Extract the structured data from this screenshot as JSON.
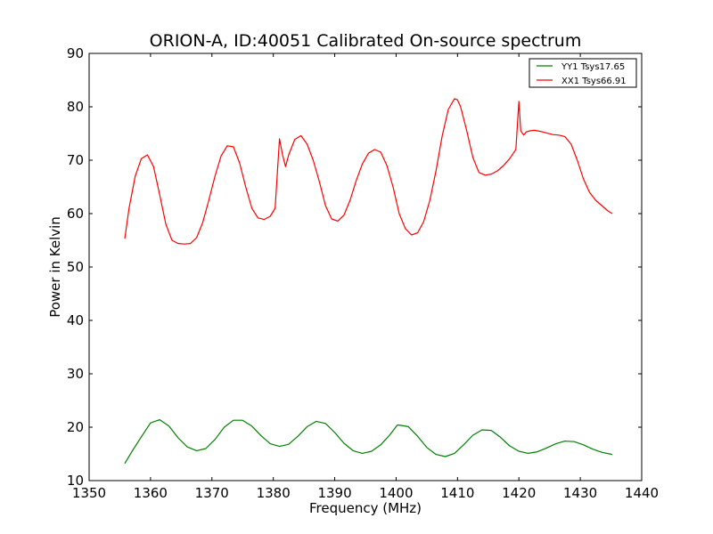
{
  "chart_data": {
    "type": "line",
    "title": "ORION-A, ID:40051 Calibrated On-source spectrum",
    "xlabel": "Frequency (MHz)",
    "ylabel": "Power in Kelvin",
    "xlim": [
      1350,
      1440
    ],
    "ylim": [
      10,
      90
    ],
    "xticks": [
      "1350",
      "1360",
      "1370",
      "1380",
      "1390",
      "1400",
      "1410",
      "1420",
      "1430",
      "1440"
    ],
    "yticks": [
      "10",
      "20",
      "30",
      "40",
      "50",
      "60",
      "70",
      "80",
      "90"
    ],
    "grid": false,
    "legend_position": "top-right",
    "series": [
      {
        "name": "YY1 Tsys17.65",
        "color": "#008000",
        "x": [
          1355.8,
          1357.0,
          1358.5,
          1360.0,
          1361.5,
          1363.0,
          1364.5,
          1366.0,
          1367.5,
          1369.0,
          1370.5,
          1372.0,
          1373.5,
          1375.0,
          1376.5,
          1378.0,
          1379.5,
          1381.0,
          1382.5,
          1384.0,
          1385.5,
          1387.0,
          1388.5,
          1390.0,
          1391.5,
          1393.0,
          1394.5,
          1396.0,
          1397.5,
          1399.0,
          1400.2,
          1400.5,
          1402.0,
          1403.5,
          1405.0,
          1406.5,
          1408.0,
          1409.5,
          1411.0,
          1412.5,
          1414.0,
          1415.5,
          1417.0,
          1418.5,
          1420.0,
          1421.5,
          1423.0,
          1424.5,
          1426.0,
          1427.5,
          1429.0,
          1430.5,
          1432.0,
          1433.5,
          1435.2
        ],
        "values": [
          13.2,
          15.5,
          18.2,
          20.8,
          21.4,
          20.2,
          18.0,
          16.3,
          15.6,
          16.0,
          17.7,
          20.0,
          21.3,
          21.3,
          20.2,
          18.4,
          16.9,
          16.4,
          16.8,
          18.3,
          20.1,
          21.1,
          20.7,
          19.0,
          17.0,
          15.6,
          15.1,
          15.5,
          16.7,
          18.6,
          20.4,
          20.4,
          20.1,
          18.3,
          16.2,
          14.9,
          14.5,
          15.1,
          16.7,
          18.5,
          19.5,
          19.4,
          18.1,
          16.5,
          15.5,
          15.1,
          15.4,
          16.1,
          16.9,
          17.4,
          17.3,
          16.7,
          15.9,
          15.3,
          14.9
        ]
      },
      {
        "name": "XX1 Tsys66.91",
        "color": "#ff0000",
        "x": [
          1355.8,
          1356.5,
          1357.5,
          1358.5,
          1359.5,
          1360.5,
          1361.5,
          1362.5,
          1363.5,
          1364.5,
          1365.5,
          1366.5,
          1367.5,
          1368.5,
          1369.5,
          1370.5,
          1371.5,
          1372.5,
          1373.5,
          1374.5,
          1375.5,
          1376.5,
          1377.5,
          1378.5,
          1379.5,
          1380.3,
          1381.0,
          1381.5,
          1382.0,
          1382.5,
          1383.5,
          1384.5,
          1385.5,
          1386.5,
          1387.5,
          1388.5,
          1389.5,
          1390.5,
          1391.5,
          1392.5,
          1393.5,
          1394.5,
          1395.5,
          1396.5,
          1397.5,
          1398.5,
          1399.5,
          1400.5,
          1401.5,
          1402.5,
          1403.5,
          1404.5,
          1405.5,
          1406.5,
          1407.5,
          1408.5,
          1409.5,
          1410.0,
          1410.5,
          1411.5,
          1412.5,
          1413.5,
          1414.5,
          1415.5,
          1416.5,
          1417.5,
          1418.5,
          1419.5,
          1420.0,
          1420.3,
          1420.8,
          1421.2,
          1421.8,
          1422.5,
          1423.5,
          1424.5,
          1425.5,
          1426.5,
          1427.5,
          1428.5,
          1429.5,
          1430.5,
          1431.5,
          1432.5,
          1433.5,
          1434.5,
          1435.2
        ],
        "values": [
          55.3,
          61.0,
          67.0,
          70.3,
          71.0,
          68.8,
          63.5,
          58.0,
          55.0,
          54.4,
          54.3,
          54.4,
          55.5,
          58.3,
          62.5,
          67.0,
          70.8,
          72.7,
          72.5,
          69.5,
          65.0,
          61.0,
          59.2,
          58.9,
          59.5,
          61.0,
          74.0,
          71.0,
          68.8,
          71.0,
          73.9,
          74.6,
          73.0,
          70.0,
          66.0,
          61.5,
          59.0,
          58.6,
          59.7,
          62.5,
          66.2,
          69.3,
          71.3,
          72.0,
          71.5,
          69.0,
          65.0,
          60.0,
          57.2,
          56.0,
          56.4,
          58.5,
          62.5,
          68.0,
          74.5,
          79.5,
          81.5,
          81.3,
          80.0,
          75.5,
          70.5,
          67.7,
          67.2,
          67.4,
          68.0,
          69.0,
          70.3,
          72.0,
          81.0,
          75.5,
          74.7,
          75.3,
          75.5,
          75.6,
          75.4,
          75.1,
          74.8,
          74.7,
          74.4,
          73.0,
          70.0,
          66.5,
          64.0,
          62.5,
          61.5,
          60.5,
          60.0
        ]
      }
    ]
  }
}
